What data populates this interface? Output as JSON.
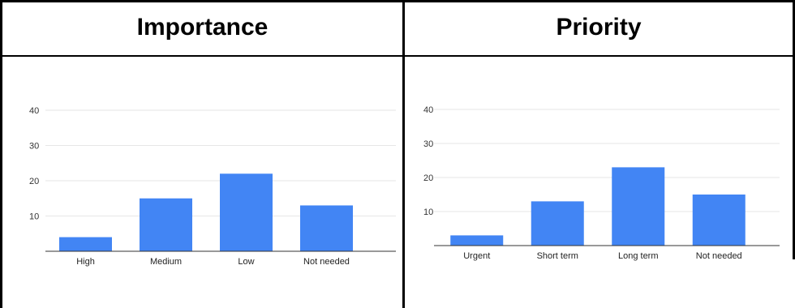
{
  "headers": {
    "left": "Importance",
    "right": "Priority"
  },
  "chart_data": [
    {
      "type": "bar",
      "categories": [
        "High",
        "Medium",
        "Low",
        "Not needed"
      ],
      "values": [
        4,
        15,
        22,
        13
      ],
      "ylim": [
        0,
        40
      ],
      "yticks": [
        10,
        20,
        30,
        40
      ],
      "grid": true,
      "bar_color": "#4285f4"
    },
    {
      "type": "bar",
      "categories": [
        "Urgent",
        "Short term",
        "Long term",
        "Not needed"
      ],
      "values": [
        3,
        13,
        23,
        15
      ],
      "ylim": [
        0,
        40
      ],
      "yticks": [
        10,
        20,
        30,
        40
      ],
      "grid": true,
      "bar_color": "#4285f4"
    }
  ]
}
